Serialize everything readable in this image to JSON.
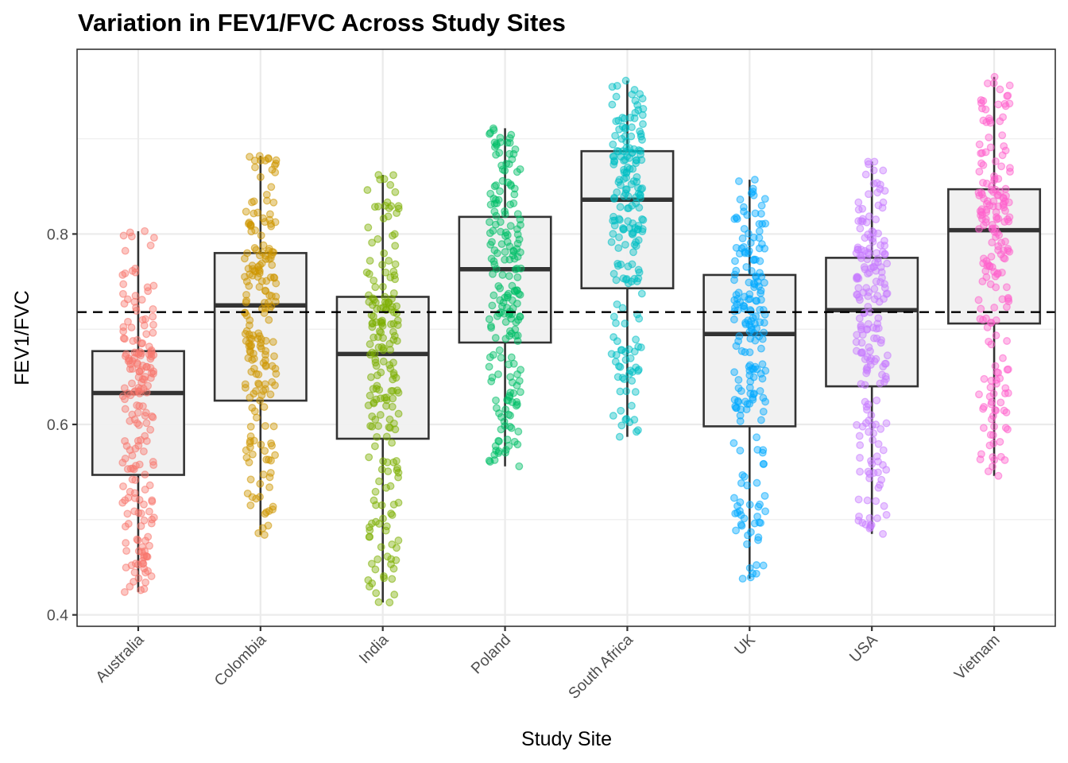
{
  "chart_data": {
    "type": "boxplot_jitter",
    "title": "Variation in FEV1/FVC Across Study Sites",
    "xlabel": "Study Site",
    "ylabel": "FEV1/FVC",
    "ylim": [
      0.388,
      0.994
    ],
    "yticks": [
      0.4,
      0.6,
      0.8
    ],
    "ytick_labels": [
      "0.4",
      "0.6",
      "0.8"
    ],
    "y_minor_gridlines": [
      0.5,
      0.7,
      0.9
    ],
    "grid": true,
    "legend": "none",
    "reference_line": {
      "value": 0.718,
      "style": "dashed",
      "color": "#000000"
    },
    "categories": [
      "Australia",
      "Colombia",
      "India",
      "Poland",
      "South Africa",
      "UK",
      "USA",
      "Vietnam"
    ],
    "series": [
      {
        "name": "Australia",
        "color": "#F8766D",
        "whisker_low": 0.424,
        "q1": 0.547,
        "median": 0.633,
        "q3": 0.677,
        "whisker_high": 0.803,
        "n_points": 200
      },
      {
        "name": "Colombia",
        "color": "#CD9600",
        "whisker_low": 0.484,
        "q1": 0.625,
        "median": 0.725,
        "q3": 0.78,
        "whisker_high": 0.882,
        "n_points": 200
      },
      {
        "name": "India",
        "color": "#7CAE00",
        "whisker_low": 0.413,
        "q1": 0.585,
        "median": 0.674,
        "q3": 0.734,
        "whisker_high": 0.862,
        "n_points": 200
      },
      {
        "name": "Poland",
        "color": "#00BE67",
        "whisker_low": 0.556,
        "q1": 0.686,
        "median": 0.763,
        "q3": 0.818,
        "whisker_high": 0.911,
        "n_points": 200
      },
      {
        "name": "South Africa",
        "color": "#00BFC4",
        "whisker_low": 0.587,
        "q1": 0.743,
        "median": 0.836,
        "q3": 0.887,
        "whisker_high": 0.961,
        "n_points": 200
      },
      {
        "name": "UK",
        "color": "#00A9FF",
        "whisker_low": 0.438,
        "q1": 0.598,
        "median": 0.695,
        "q3": 0.757,
        "whisker_high": 0.857,
        "n_points": 200
      },
      {
        "name": "USA",
        "color": "#C77CFF",
        "whisker_low": 0.485,
        "q1": 0.64,
        "median": 0.72,
        "q3": 0.775,
        "whisker_high": 0.876,
        "n_points": 200
      },
      {
        "name": "Vietnam",
        "color": "#FF61CC",
        "whisker_low": 0.546,
        "q1": 0.706,
        "median": 0.804,
        "q3": 0.847,
        "whisker_high": 0.965,
        "n_points": 200
      }
    ]
  }
}
